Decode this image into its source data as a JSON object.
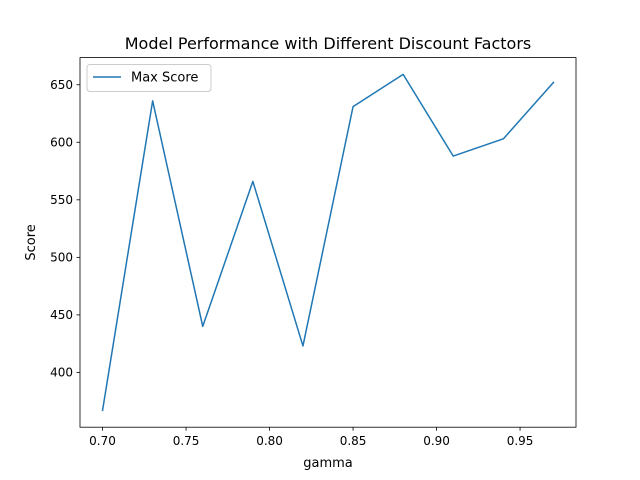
{
  "chart_data": {
    "type": "line",
    "title": "Model Performance with Different Discount Factors",
    "xlabel": "gamma",
    "ylabel": "Score",
    "x": [
      0.7,
      0.73,
      0.76,
      0.79,
      0.82,
      0.85,
      0.88,
      0.91,
      0.94,
      0.97
    ],
    "series": [
      {
        "name": "Max Score",
        "values": [
          367,
          636,
          440,
          566,
          423,
          631,
          659,
          588,
          603,
          652
        ],
        "color": "#1f77b4"
      }
    ],
    "xlim": [
      0.6865,
      0.9835
    ],
    "ylim": [
      352.4,
      673.6
    ],
    "xticks": [
      0.7,
      0.75,
      0.8,
      0.85,
      0.9,
      0.95
    ],
    "xtick_labels": [
      "0.70",
      "0.75",
      "0.80",
      "0.85",
      "0.90",
      "0.95"
    ],
    "yticks": [
      400,
      450,
      500,
      550,
      600,
      650
    ],
    "ytick_labels": [
      "400",
      "450",
      "500",
      "550",
      "600",
      "650"
    ],
    "grid": false,
    "legend_position": "top-left"
  }
}
